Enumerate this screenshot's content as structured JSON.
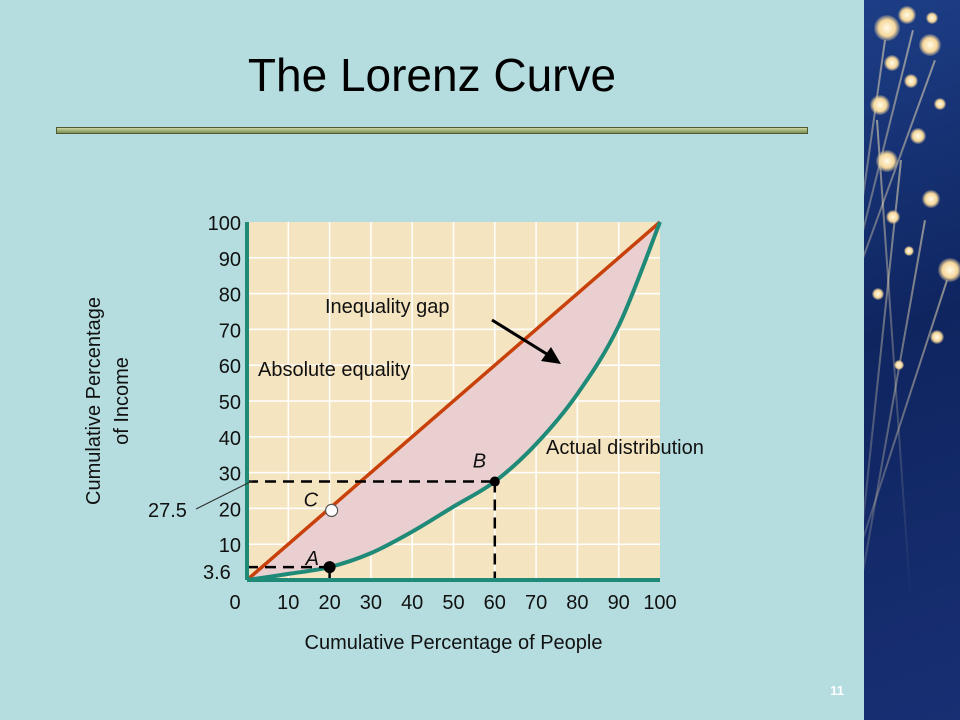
{
  "slide": {
    "title": "The Lorenz Curve",
    "page_number": "11",
    "side_panel_icon": "fiber-optic-decoration"
  },
  "colors": {
    "background": "#b5dde0",
    "plot_background": "#f5e4c0",
    "equality_line": "#c8410a",
    "lorenz_curve": "#1f8a78",
    "gap_fill": "#eacfd0",
    "axis": "#1f8a78"
  },
  "chart_data": {
    "type": "line",
    "title": "The Lorenz Curve",
    "xlabel": "Cumulative Percentage of People",
    "ylabel": "Cumulative Percentage of Income",
    "xlim": [
      0,
      100
    ],
    "ylim": [
      0,
      100
    ],
    "x_ticks": [
      "0",
      "10",
      "20",
      "30",
      "40",
      "50",
      "60",
      "70",
      "80",
      "90",
      "100"
    ],
    "y_ticks": [
      "10",
      "20",
      "30",
      "40",
      "50",
      "60",
      "70",
      "80",
      "90",
      "100"
    ],
    "grid": true,
    "series": [
      {
        "name": "Absolute equality",
        "x": [
          0,
          100
        ],
        "y": [
          0,
          100
        ]
      },
      {
        "name": "Actual distribution",
        "x": [
          0,
          10,
          20,
          30,
          40,
          50,
          60,
          70,
          80,
          90,
          100
        ],
        "y": [
          0,
          1.7,
          3.6,
          7.5,
          13.5,
          20.5,
          27.5,
          38,
          52,
          71,
          100
        ]
      }
    ],
    "points": [
      {
        "label": "A",
        "x": 20,
        "y": 3.6
      },
      {
        "label": "B",
        "x": 60,
        "y": 27.5
      },
      {
        "label": "C",
        "x": 20,
        "y": 20
      }
    ],
    "reference_labels": [
      "27.5",
      "3.6"
    ],
    "annotations": [
      "Inequality gap",
      "Absolute equality",
      "Actual distribution"
    ]
  }
}
